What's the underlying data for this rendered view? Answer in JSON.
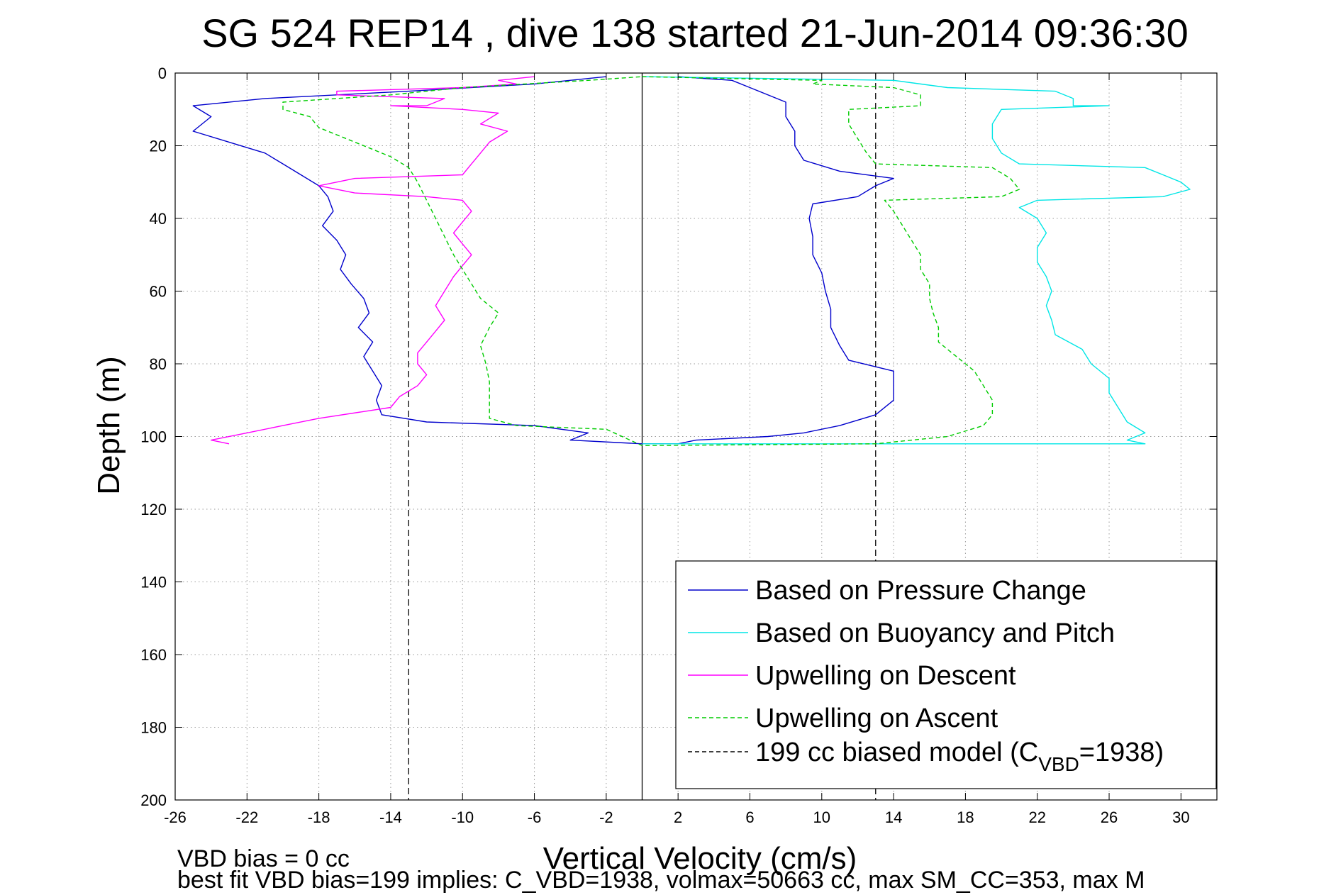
{
  "chart_data": {
    "type": "line",
    "title": "SG 524   REP14  , dive 138 started 21-Jun-2014 09:36:30",
    "xlabel": "Vertical Velocity (cm/s)",
    "ylabel": "Depth (m)",
    "xlim": [
      -26,
      32
    ],
    "ylim": [
      0,
      200
    ],
    "y_reversed": true,
    "grid": true,
    "legend_position": "lower-right",
    "xticks": [
      -26,
      -22,
      -18,
      -14,
      -10,
      -6,
      -2,
      2,
      6,
      10,
      14,
      18,
      22,
      26,
      30
    ],
    "yticks": [
      0,
      20,
      40,
      60,
      80,
      100,
      120,
      140,
      160,
      180,
      200
    ],
    "zero_line_x": 0,
    "series": [
      {
        "name": "Based on Pressure Change",
        "color": "#0000cc",
        "style": "solid",
        "points": [
          {
            "x": -2,
            "y": 1
          },
          {
            "x": -6,
            "y": 3
          },
          {
            "x": -13,
            "y": 5
          },
          {
            "x": -21,
            "y": 7
          },
          {
            "x": -25,
            "y": 9
          },
          {
            "x": -24,
            "y": 12
          },
          {
            "x": -25,
            "y": 16
          },
          {
            "x": -23,
            "y": 19
          },
          {
            "x": -21,
            "y": 22
          },
          {
            "x": -20,
            "y": 25
          },
          {
            "x": -19,
            "y": 28
          },
          {
            "x": -18,
            "y": 31
          },
          {
            "x": -17.5,
            "y": 34
          },
          {
            "x": -17.2,
            "y": 38
          },
          {
            "x": -17.8,
            "y": 42
          },
          {
            "x": -17,
            "y": 46
          },
          {
            "x": -16.5,
            "y": 50
          },
          {
            "x": -16.8,
            "y": 54
          },
          {
            "x": -16.2,
            "y": 58
          },
          {
            "x": -15.5,
            "y": 62
          },
          {
            "x": -15.2,
            "y": 66
          },
          {
            "x": -15.8,
            "y": 70
          },
          {
            "x": -15,
            "y": 74
          },
          {
            "x": -15.5,
            "y": 78
          },
          {
            "x": -15,
            "y": 82
          },
          {
            "x": -14.5,
            "y": 86
          },
          {
            "x": -14.8,
            "y": 90
          },
          {
            "x": -14.5,
            "y": 94
          },
          {
            "x": -12,
            "y": 96
          },
          {
            "x": -6,
            "y": 97
          },
          {
            "x": -3,
            "y": 99
          },
          {
            "x": -4,
            "y": 101
          },
          {
            "x": 0,
            "y": 102
          },
          {
            "x": 2,
            "y": 102
          },
          {
            "x": 3,
            "y": 101
          },
          {
            "x": 7,
            "y": 100
          },
          {
            "x": 9,
            "y": 99
          },
          {
            "x": 11,
            "y": 97
          },
          {
            "x": 13,
            "y": 94
          },
          {
            "x": 14,
            "y": 90
          },
          {
            "x": 14,
            "y": 86
          },
          {
            "x": 14,
            "y": 82
          },
          {
            "x": 11.5,
            "y": 79
          },
          {
            "x": 11,
            "y": 75
          },
          {
            "x": 10.5,
            "y": 70
          },
          {
            "x": 10.5,
            "y": 65
          },
          {
            "x": 10.2,
            "y": 60
          },
          {
            "x": 10,
            "y": 55
          },
          {
            "x": 9.5,
            "y": 50
          },
          {
            "x": 9.5,
            "y": 45
          },
          {
            "x": 9.3,
            "y": 40
          },
          {
            "x": 9.5,
            "y": 36
          },
          {
            "x": 12,
            "y": 34
          },
          {
            "x": 13,
            "y": 31
          },
          {
            "x": 14,
            "y": 29
          },
          {
            "x": 11,
            "y": 27
          },
          {
            "x": 9,
            "y": 24
          },
          {
            "x": 8.5,
            "y": 20
          },
          {
            "x": 8.5,
            "y": 16
          },
          {
            "x": 8,
            "y": 12
          },
          {
            "x": 8,
            "y": 8
          },
          {
            "x": 6,
            "y": 4
          },
          {
            "x": 5,
            "y": 2
          },
          {
            "x": 2,
            "y": 1
          }
        ]
      },
      {
        "name": "Based on Buoyancy and Pitch",
        "color": "#00e6e6",
        "style": "solid",
        "points": [
          {
            "x": 0,
            "y": 1
          },
          {
            "x": 14,
            "y": 2
          },
          {
            "x": 17,
            "y": 4
          },
          {
            "x": 23,
            "y": 5
          },
          {
            "x": 24,
            "y": 7
          },
          {
            "x": 24,
            "y": 9
          },
          {
            "x": 26,
            "y": 9
          },
          {
            "x": 20,
            "y": 10
          },
          {
            "x": 19.5,
            "y": 14
          },
          {
            "x": 19.5,
            "y": 18
          },
          {
            "x": 20,
            "y": 22
          },
          {
            "x": 21,
            "y": 25
          },
          {
            "x": 28,
            "y": 26
          },
          {
            "x": 29,
            "y": 28
          },
          {
            "x": 30,
            "y": 30
          },
          {
            "x": 30.5,
            "y": 32
          },
          {
            "x": 29,
            "y": 34
          },
          {
            "x": 22,
            "y": 35
          },
          {
            "x": 21,
            "y": 37
          },
          {
            "x": 22,
            "y": 40
          },
          {
            "x": 22.5,
            "y": 44
          },
          {
            "x": 22,
            "y": 48
          },
          {
            "x": 22,
            "y": 52
          },
          {
            "x": 22.5,
            "y": 56
          },
          {
            "x": 22.8,
            "y": 60
          },
          {
            "x": 22.5,
            "y": 64
          },
          {
            "x": 22.8,
            "y": 68
          },
          {
            "x": 23,
            "y": 72
          },
          {
            "x": 24.5,
            "y": 76
          },
          {
            "x": 25,
            "y": 80
          },
          {
            "x": 26,
            "y": 84
          },
          {
            "x": 26,
            "y": 88
          },
          {
            "x": 26.5,
            "y": 92
          },
          {
            "x": 27,
            "y": 96
          },
          {
            "x": 28,
            "y": 99
          },
          {
            "x": 27,
            "y": 101
          },
          {
            "x": 28,
            "y": 102
          },
          {
            "x": 0,
            "y": 102
          }
        ]
      },
      {
        "name": "Upwelling on Descent",
        "color": "#ff00ff",
        "style": "solid",
        "points": [
          {
            "x": -6,
            "y": 1
          },
          {
            "x": -8,
            "y": 2
          },
          {
            "x": -7,
            "y": 3
          },
          {
            "x": -10,
            "y": 4
          },
          {
            "x": -17,
            "y": 5
          },
          {
            "x": -17,
            "y": 6
          },
          {
            "x": -11,
            "y": 7
          },
          {
            "x": -12,
            "y": 9
          },
          {
            "x": -14,
            "y": 9
          },
          {
            "x": -10,
            "y": 10
          },
          {
            "x": -8,
            "y": 11
          },
          {
            "x": -9,
            "y": 14
          },
          {
            "x": -7.5,
            "y": 16
          },
          {
            "x": -8.5,
            "y": 19
          },
          {
            "x": -9,
            "y": 22
          },
          {
            "x": -9.5,
            "y": 25
          },
          {
            "x": -10,
            "y": 28
          },
          {
            "x": -16,
            "y": 29
          },
          {
            "x": -18,
            "y": 31
          },
          {
            "x": -16,
            "y": 33
          },
          {
            "x": -12,
            "y": 34
          },
          {
            "x": -10,
            "y": 35
          },
          {
            "x": -9.5,
            "y": 38
          },
          {
            "x": -10,
            "y": 41
          },
          {
            "x": -10.5,
            "y": 44
          },
          {
            "x": -10,
            "y": 47
          },
          {
            "x": -9.5,
            "y": 50
          },
          {
            "x": -10,
            "y": 53
          },
          {
            "x": -10.5,
            "y": 56
          },
          {
            "x": -11,
            "y": 60
          },
          {
            "x": -11.5,
            "y": 64
          },
          {
            "x": -11,
            "y": 68
          },
          {
            "x": -11.5,
            "y": 71
          },
          {
            "x": -12,
            "y": 74
          },
          {
            "x": -12.5,
            "y": 77
          },
          {
            "x": -12.5,
            "y": 80
          },
          {
            "x": -12,
            "y": 83
          },
          {
            "x": -12.5,
            "y": 86
          },
          {
            "x": -13.5,
            "y": 89
          },
          {
            "x": -14,
            "y": 92
          },
          {
            "x": -18,
            "y": 95
          },
          {
            "x": -20,
            "y": 97
          },
          {
            "x": -22,
            "y": 99
          },
          {
            "x": -24,
            "y": 101
          },
          {
            "x": -23,
            "y": 102
          }
        ]
      },
      {
        "name": "Upwelling on Ascent",
        "color": "#00cc00",
        "style": "dashed",
        "points": [
          {
            "x": 0,
            "y": 1
          },
          {
            "x": 10,
            "y": 2
          },
          {
            "x": 9.5,
            "y": 3
          },
          {
            "x": 14,
            "y": 4
          },
          {
            "x": 15.5,
            "y": 6
          },
          {
            "x": 15.5,
            "y": 9
          },
          {
            "x": 11.5,
            "y": 10
          },
          {
            "x": 11.5,
            "y": 14
          },
          {
            "x": 12,
            "y": 18
          },
          {
            "x": 12.5,
            "y": 22
          },
          {
            "x": 13,
            "y": 25
          },
          {
            "x": 19.5,
            "y": 26
          },
          {
            "x": 20.5,
            "y": 29
          },
          {
            "x": 21,
            "y": 32
          },
          {
            "x": 20,
            "y": 34
          },
          {
            "x": 13.5,
            "y": 35
          },
          {
            "x": 14,
            "y": 38
          },
          {
            "x": 14.5,
            "y": 42
          },
          {
            "x": 15,
            "y": 46
          },
          {
            "x": 15.5,
            "y": 50
          },
          {
            "x": 15.5,
            "y": 54
          },
          {
            "x": 16,
            "y": 58
          },
          {
            "x": 16,
            "y": 62
          },
          {
            "x": 16.2,
            "y": 66
          },
          {
            "x": 16.5,
            "y": 70
          },
          {
            "x": 16.5,
            "y": 74
          },
          {
            "x": 17.5,
            "y": 78
          },
          {
            "x": 18.5,
            "y": 82
          },
          {
            "x": 19,
            "y": 86
          },
          {
            "x": 19.5,
            "y": 90
          },
          {
            "x": 19.5,
            "y": 94
          },
          {
            "x": 19,
            "y": 97
          },
          {
            "x": 17,
            "y": 100
          },
          {
            "x": 13,
            "y": 102
          },
          {
            "x": 0,
            "y": 102.5
          },
          {
            "x": -2,
            "y": 98
          },
          {
            "x": -7,
            "y": 97
          },
          {
            "x": -8.5,
            "y": 95
          },
          {
            "x": -8.5,
            "y": 90
          },
          {
            "x": -8.5,
            "y": 85
          },
          {
            "x": -8.7,
            "y": 80
          },
          {
            "x": -9,
            "y": 75
          },
          {
            "x": -8.5,
            "y": 70
          },
          {
            "x": -8,
            "y": 66
          },
          {
            "x": -9,
            "y": 62
          },
          {
            "x": -9.5,
            "y": 58
          },
          {
            "x": -10,
            "y": 54
          },
          {
            "x": -10.5,
            "y": 50
          },
          {
            "x": -11,
            "y": 45
          },
          {
            "x": -11.5,
            "y": 40
          },
          {
            "x": -12,
            "y": 35
          },
          {
            "x": -12.5,
            "y": 30
          },
          {
            "x": -13,
            "y": 26
          },
          {
            "x": -14,
            "y": 23
          },
          {
            "x": -16,
            "y": 19
          },
          {
            "x": -18,
            "y": 15
          },
          {
            "x": -18.5,
            "y": 12
          },
          {
            "x": -20,
            "y": 10
          },
          {
            "x": -20,
            "y": 8
          },
          {
            "x": -14,
            "y": 6
          },
          {
            "x": -10,
            "y": 4
          },
          {
            "x": -3,
            "y": 2
          },
          {
            "x": 0,
            "y": 1
          }
        ]
      },
      {
        "name": "199 cc biased model (C_VBD=1938)",
        "color": "#000000",
        "style": "dashed",
        "vertical_lines_x": [
          -13,
          13
        ],
        "points": []
      }
    ],
    "legend": [
      {
        "label": "Based on Pressure Change",
        "color": "#0000cc",
        "style": "solid"
      },
      {
        "label": "Based on Buoyancy and Pitch",
        "color": "#00e6e6",
        "style": "solid"
      },
      {
        "label": "Upwelling on Descent",
        "color": "#ff00ff",
        "style": "solid"
      },
      {
        "label": "Upwelling on Ascent",
        "color": "#00cc00",
        "style": "dashed"
      },
      {
        "label_main": "199 cc biased model (C",
        "label_sub": "VBD",
        "label_tail": "=1938)",
        "color": "#000000",
        "style": "dashed"
      }
    ],
    "footer_lines": [
      "VBD bias = 0 cc",
      "best fit VBD bias=199 implies: C_VBD=1938, volmax=50663 cc, max SM_CC=353, max M"
    ]
  }
}
